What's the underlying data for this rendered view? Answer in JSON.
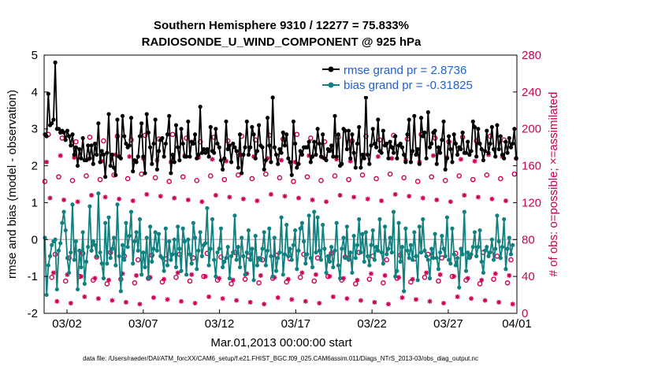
{
  "chart_data": {
    "type": "line",
    "title": "Southern Hemisphere 9310 / 12277 = 75.833%",
    "subtitle": "RADIOSONDE_U_WIND_COMPONENT @ 925 hPa",
    "xlabel": "Mar.01,2013 00:00:00 start",
    "ylabel": "rmse and bias (model - observation)",
    "ylabel_right": "# of obs: o=possible; ×=assimilated",
    "footer": "data file: /Users/raeder/DAI/ATM_forcXX/CAM6_setup/f.e21.FHIST_BGC.f09_025.CAM6assim.011/Diags_NTrS_2013-03/obs_diag_output.nc",
    "xlim": [
      0.5,
      31.5
    ],
    "ylim": [
      -2,
      5
    ],
    "ylim_right": [
      0,
      280
    ],
    "xticks": [
      2,
      7,
      12,
      17,
      22,
      27,
      32
    ],
    "xtick_labels": [
      "03/02",
      "03/07",
      "03/12",
      "03/17",
      "03/22",
      "03/27",
      "04/01"
    ],
    "yticks": [
      -2,
      -1,
      0,
      1,
      2,
      3,
      4,
      5
    ],
    "yticks_right": [
      0,
      40,
      80,
      120,
      160,
      200,
      240,
      280
    ],
    "ref_line_right": 80,
    "colors": {
      "rmse": "#000000",
      "bias": "#108080",
      "obs": "#cc0055",
      "legend_text": "#1f5fd6",
      "ref_line": "#c8b4b8"
    },
    "series": [
      {
        "name": "rmse grand pr = 2.8736",
        "key": "rmse",
        "values": [
          2.85,
          2.8,
          3.95,
          3.1,
          3.15,
          3.25,
          4.8,
          3.0,
          3.0,
          2.9,
          2.95,
          2.9,
          2.7,
          2.95,
          2.8,
          2.55,
          2.85,
          2.3,
          2.5,
          2.0,
          2.45,
          2.2,
          2.75,
          2.15,
          2.15,
          2.55,
          2.2,
          2.55,
          2.05,
          2.6,
          2.3,
          3.15,
          2.1,
          2.4,
          2.3,
          1.7,
          2.35,
          3.4,
          2.0,
          2.3,
          1.95,
          1.75,
          3.25,
          2.25,
          2.2,
          3.35,
          2.8,
          2.6,
          2.5,
          2.55,
          3.3,
          1.85,
          2.15,
          2.1,
          2.25,
          2.8,
          3.15,
          2.25,
          1.8,
          3.4,
          2.9,
          2.5,
          2.05,
          2.6,
          3.25,
          1.9,
          2.4,
          2.7,
          2.75,
          2.25,
          2.6,
          2.85,
          3.35,
          1.8,
          2.3,
          2.1,
          3.1,
          2.5,
          2.15,
          3.0,
          2.6,
          2.25,
          2.25,
          3.2,
          2.25,
          2.65,
          2.6,
          2.85,
          2.2,
          2.3,
          3.6,
          2.35,
          2.45,
          2.35,
          2.45,
          2.25,
          3.05,
          2.4,
          2.35,
          3.0,
          2.6,
          2.5,
          2.15,
          1.9,
          2.2,
          3.2,
          2.45,
          2.55,
          2.1,
          2.6,
          2.5,
          2.4,
          1.95,
          2.85,
          1.8,
          2.3,
          2.5,
          3.2,
          2.3,
          2.5,
          3.05,
          2.85,
          2.2,
          2.4,
          3.1,
          2.55,
          2.5,
          1.9,
          2.15,
          3.3,
          2.55,
          2.1,
          3.85,
          2.5,
          2.3,
          2.05,
          2.45,
          2.35,
          2.9,
          2.55,
          2.85,
          2.2,
          2.1,
          1.75,
          3.2,
          2.6,
          1.95,
          2.05,
          2.4,
          2.3,
          2.5,
          2.5,
          2.5,
          2.65,
          2.1,
          2.25,
          2.65,
          2.3,
          3.0,
          2.6,
          2.25,
          2.85,
          2.2,
          2.15,
          2.45,
          2.4,
          2.55,
          2.25,
          3.35,
          2.25,
          2.85,
          2.0,
          2.05,
          3.0,
          2.95,
          2.45,
          2.95,
          2.2,
          2.85,
          2.35,
          1.95,
          2.6,
          3.05,
          1.95,
          2.3,
          2.2,
          3.85,
          2.3,
          2.05,
          2.55,
          3.0,
          2.6,
          2.5,
          3.25,
          2.4,
          2.35,
          2.95,
          2.55,
          2.6,
          2.2,
          2.65,
          2.5,
          2.35,
          2.8,
          2.2,
          2.55,
          2.6,
          2.5,
          2.3,
          2.1,
          2.85,
          3.25,
          2.1,
          2.4,
          3.35,
          2.3,
          2.45,
          2.05,
          3.3,
          2.8,
          2.9,
          2.2,
          3.45,
          2.5,
          2.6,
          2.9,
          2.95,
          2.05,
          2.5,
          2.35,
          2.7,
          3.2,
          1.9,
          2.2,
          2.8,
          2.45,
          2.1,
          2.85,
          2.6,
          2.3,
          2.5,
          2.45,
          2.9,
          2.35,
          2.35,
          2.65,
          2.3,
          2.4,
          3.2,
          3.05,
          2.25,
          3.0,
          2.6,
          2.45,
          2.15,
          2.4,
          2.95,
          2.35,
          2.6,
          3.05,
          2.45,
          2.25,
          3.1,
          2.45,
          2.8,
          2.3,
          2.2,
          2.65,
          2.35,
          2.75,
          2.5,
          2.6,
          3.0,
          2.2
        ]
      },
      {
        "name": "bias grand pr = -0.31825",
        "key": "bias",
        "values": [
          0.05,
          -1.5,
          -0.7,
          -0.45,
          -0.15,
          -0.05,
          0.0,
          -1.35,
          -0.3,
          -0.1,
          0.45,
          0.75,
          0.25,
          -0.5,
          -0.9,
          -0.35,
          0.95,
          -0.55,
          -0.05,
          -1.35,
          -0.3,
          -0.75,
          0.2,
          -1.2,
          -0.6,
          -0.2,
          0.9,
          -0.3,
          -0.05,
          -0.15,
          -0.45,
          1.25,
          -0.35,
          -0.65,
          -1.05,
          0.45,
          -0.65,
          0.6,
          -0.5,
          -0.25,
          0.05,
          -0.7,
          0.95,
          -0.45,
          -1.4,
          -0.15,
          -0.55,
          0.45,
          -0.2,
          0.1,
          0.75,
          -0.65,
          -0.05,
          0.2,
          -0.3,
          0.55,
          -0.95,
          -0.35,
          -0.75,
          0.05,
          -1.05,
          0.35,
          -0.6,
          -0.25,
          0.2,
          -0.3,
          0.15,
          -0.45,
          -0.5,
          -0.85,
          0.3,
          -0.7,
          -0.05,
          -0.55,
          -0.4,
          0.0,
          -0.75,
          0.35,
          -0.25,
          -0.85,
          0.3,
          -0.05,
          -0.95,
          0.0,
          -0.4,
          -0.65,
          0.45,
          0.05,
          -0.8,
          -0.3,
          0.2,
          -0.45,
          -0.15,
          -0.1,
          0.85,
          -0.7,
          -0.25,
          0.55,
          -0.55,
          -1.0,
          -0.35,
          -0.25,
          0.3,
          -0.75,
          -0.6,
          -0.5,
          -0.2,
          -1.05,
          -0.45,
          -0.35,
          0.65,
          -0.55,
          -0.2,
          -0.75,
          0.05,
          -0.45,
          -0.95,
          -0.35,
          0.25,
          -0.55,
          -0.25,
          -1.1,
          0.1,
          -0.7,
          -0.5,
          -0.55,
          -0.25,
          0.2,
          -0.7,
          -0.3,
          0.3,
          -0.45,
          -1.0,
          0.05,
          -0.85,
          -0.5,
          -0.35,
          0.6,
          -0.95,
          -0.4,
          0.4,
          -0.45,
          -0.25,
          -0.55,
          -0.15,
          0.25,
          -0.8,
          -0.3,
          0.3,
          0.45,
          -0.05,
          -0.65,
          -0.4,
          0.65,
          -0.5,
          -0.75,
          0.75,
          -0.35,
          0.6,
          -0.3,
          -0.55,
          0.4,
          -0.25,
          -0.9,
          -0.45,
          -0.6,
          -0.2,
          -0.75,
          -0.3,
          0.45,
          -0.7,
          -1.05,
          -0.25,
          0.05,
          -0.5,
          0.35,
          -0.55,
          -0.35,
          -0.9,
          0.1,
          -0.5,
          -0.15,
          0.55,
          -0.35,
          0.15,
          -0.6,
          0.2,
          -0.45,
          -0.7,
          -0.15,
          0.25,
          -0.55,
          -0.2,
          -0.3,
          0.55,
          -0.35,
          -0.65,
          0.35,
          -0.4,
          -0.25,
          0.05,
          -0.35,
          0.75,
          -1.0,
          -0.85,
          0.45,
          -0.6,
          -0.2,
          -1.4,
          0.3,
          -0.3,
          -0.5,
          -0.15,
          -0.55,
          0.2,
          -0.45,
          -1.1,
          0.35,
          -0.35,
          0.55,
          -0.3,
          -0.45,
          -0.55,
          -1.05,
          -0.25,
          -0.5,
          0.15,
          -0.5,
          -0.8,
          -0.35,
          0.1,
          -0.25,
          -0.45,
          0.6,
          -0.55,
          -0.65,
          0.3,
          -0.4,
          -0.7,
          -0.5,
          -1.3,
          -0.25,
          -0.4,
          0.75,
          -0.85,
          -0.35,
          -0.5,
          -0.4,
          -0.2,
          0.2,
          -0.45,
          -0.2,
          0.25,
          -0.6,
          -0.9,
          -0.3,
          -0.2,
          -0.45,
          -0.35,
          0.0,
          -0.55,
          -0.25,
          0.65,
          -0.05,
          -0.5,
          -0.2,
          0.55,
          -0.8,
          -0.25,
          0.05,
          -0.4,
          -0.15
        ]
      }
    ]
  }
}
